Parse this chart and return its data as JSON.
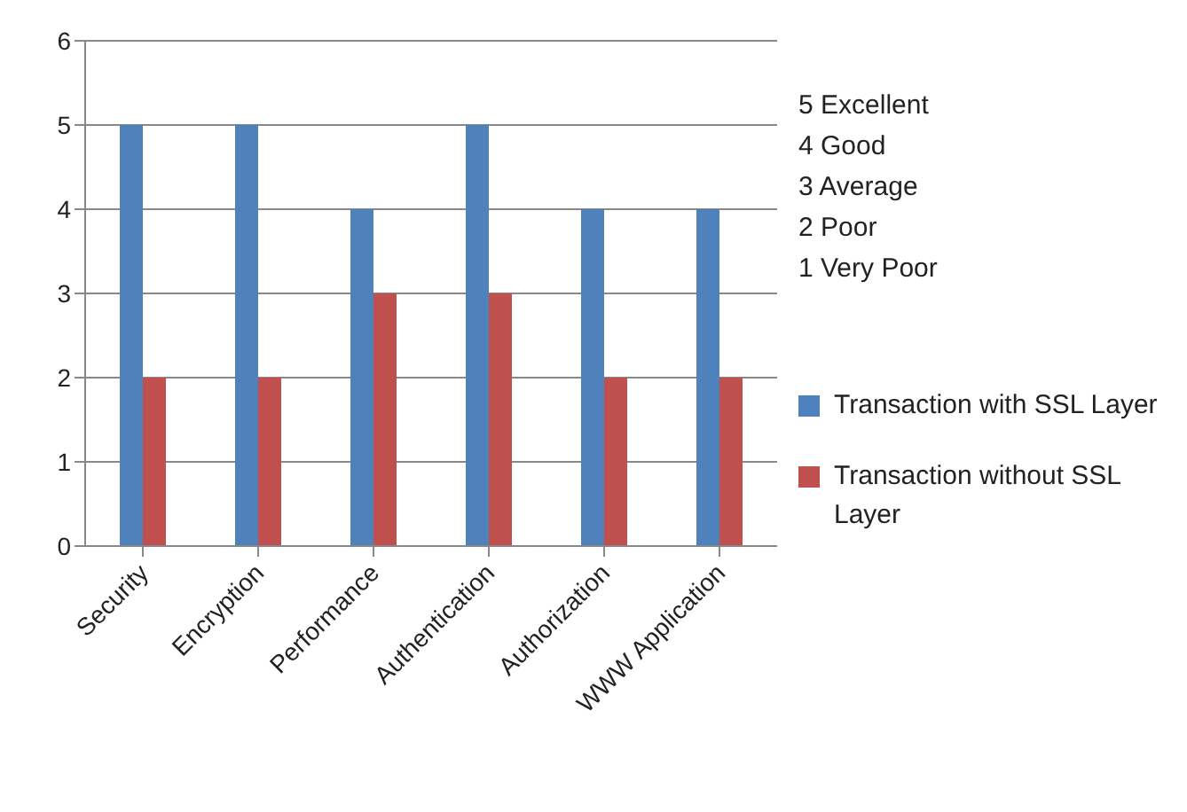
{
  "chart_data": {
    "type": "bar",
    "categories": [
      "Security",
      "Encryption",
      "Performance",
      "Authentication",
      "Authorization",
      "WWW Application"
    ],
    "series": [
      {
        "name": "Transaction with SSL Layer",
        "color": "#4f81bd",
        "values": [
          5,
          5,
          4,
          5,
          4,
          4
        ]
      },
      {
        "name": "Transaction without SSL Layer",
        "color": "#c0504d",
        "values": [
          2,
          2,
          3,
          3,
          2,
          2
        ]
      }
    ],
    "ylim": [
      0,
      6
    ],
    "yticks": [
      0,
      1,
      2,
      3,
      4,
      5,
      6
    ],
    "grid": "y",
    "legend": "right",
    "annotations": [
      "5 Excellent",
      "4 Good",
      "3 Average",
      "2 Poor",
      "1 Very Poor"
    ]
  }
}
